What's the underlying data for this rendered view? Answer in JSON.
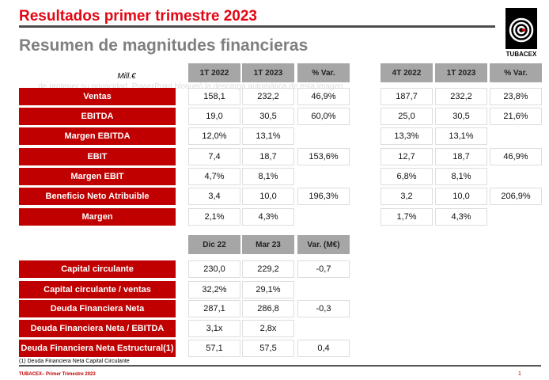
{
  "title": "Resultados primer trimestre 2023",
  "subtitle": "Resumen de magnitudes financieras",
  "logo_text": "TUBACEX",
  "unit": "Mill.€",
  "watermark": "...de proteger su privacidad, PowerPoint bloqueó la descarga automática de esta imagen.",
  "table1": {
    "headers_left": [
      "1T 2022",
      "1T 2023",
      "% Var."
    ],
    "headers_right": [
      "4T 2022",
      "1T 2023",
      "% Var."
    ],
    "rows": [
      {
        "label": "Ventas",
        "left": [
          "158,1",
          "232,2",
          "46,9%"
        ],
        "right": [
          "187,7",
          "232,2",
          "23,8%"
        ]
      },
      {
        "label": "EBITDA",
        "left": [
          "19,0",
          "30,5",
          "60,0%"
        ],
        "right": [
          "25,0",
          "30,5",
          "21,6%"
        ]
      },
      {
        "label": "Margen EBITDA",
        "left": [
          "12,0%",
          "13,1%",
          ""
        ],
        "right": [
          "13,3%",
          "13,1%",
          ""
        ]
      },
      {
        "label": "EBIT",
        "left": [
          "7,4",
          "18,7",
          "153,6%"
        ],
        "right": [
          "12,7",
          "18,7",
          "46,9%"
        ]
      },
      {
        "label": "Margen EBIT",
        "left": [
          "4,7%",
          "8,1%",
          ""
        ],
        "right": [
          "6,8%",
          "8,1%",
          ""
        ]
      },
      {
        "label": "Beneficio Neto Atribuible",
        "left": [
          "3,4",
          "10,0",
          "196,3%"
        ],
        "right": [
          "3,2",
          "10,0",
          "206,9%"
        ]
      },
      {
        "label": "Margen",
        "left": [
          "2,1%",
          "4,3%",
          ""
        ],
        "right": [
          "1,7%",
          "4,3%",
          ""
        ]
      }
    ]
  },
  "table2": {
    "headers": [
      "Dic 22",
      "Mar 23",
      "Var. (M€)"
    ],
    "rows": [
      {
        "label": "Capital circulante",
        "values": [
          "230,0",
          "229,2",
          "-0,7"
        ]
      },
      {
        "label": "Capital circulante / ventas",
        "values": [
          "32,2%",
          "29,1%",
          ""
        ]
      },
      {
        "label": "Deuda Financiera Neta",
        "values": [
          "287,1",
          "286,8",
          "-0,3"
        ]
      },
      {
        "label": "Deuda Financiera Neta / EBITDA",
        "values": [
          "3,1x",
          "2,8x",
          ""
        ]
      },
      {
        "label": "Deuda Financiera Neta Estructural(1)",
        "values": [
          "57,1",
          "57,5",
          "0,4"
        ]
      }
    ]
  },
  "footnote": "(1) Deuda Financiera Neta Capital Circulante",
  "footer": "TUBACEX– Primer Trimestre 2023",
  "page_number": "1"
}
